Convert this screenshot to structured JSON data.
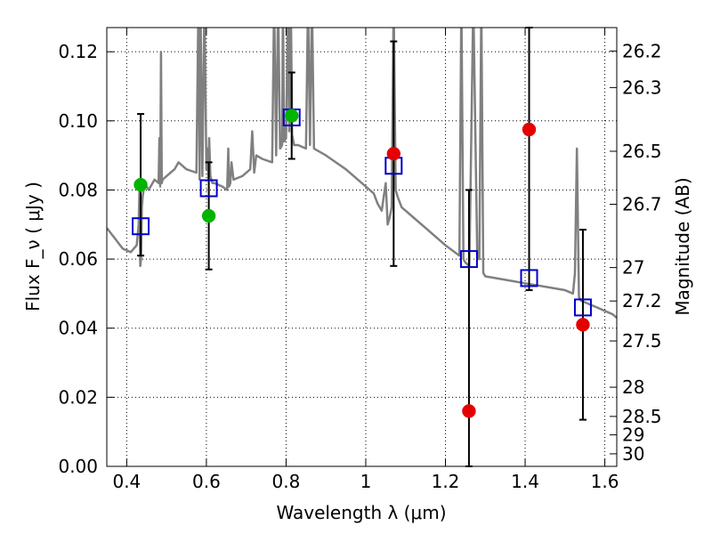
{
  "chart_data": {
    "type": "scatter",
    "xlabel": "Wavelength  λ (μm)",
    "ylabel": "Flux  F_ν  ( μJy )",
    "ylabel_right": "Magnitude (AB)",
    "xlim": [
      0.35,
      1.63
    ],
    "ylim": [
      0.0,
      0.127
    ],
    "x_ticks": [
      0.4,
      0.6,
      0.8,
      1.0,
      1.2,
      1.4,
      1.6
    ],
    "x_tick_labels": [
      "0.4",
      "0.6",
      "0.8",
      "1",
      "1.2",
      "1.4",
      "1.6"
    ],
    "y_ticks": [
      0.0,
      0.02,
      0.04,
      0.06,
      0.08,
      0.1,
      0.12
    ],
    "y_tick_labels": [
      "0.00",
      "0.02",
      "0.04",
      "0.06",
      "0.08",
      "0.10",
      "0.12"
    ],
    "right_ticks": [
      26.2,
      26.3,
      26.5,
      26.7,
      27,
      27.2,
      27.5,
      28,
      28.5,
      29,
      30
    ],
    "right_tick_labels": [
      "26.2",
      "26.3",
      "26.5",
      "26.7",
      "27",
      "27.2",
      "27.5",
      "28",
      "28.5",
      "29",
      "30"
    ],
    "grid": true,
    "colors": {
      "model": "#808080",
      "green": "#00b400",
      "red": "#e60000",
      "box": "#0000cc",
      "errorbar": "#000000"
    },
    "series": [
      {
        "marker": "open-square",
        "color": "#0000cc",
        "points": [
          {
            "x": 0.435,
            "y": 0.0695
          },
          {
            "x": 0.606,
            "y": 0.0805
          },
          {
            "x": 0.814,
            "y": 0.101
          },
          {
            "x": 1.07,
            "y": 0.087
          },
          {
            "x": 1.259,
            "y": 0.06
          },
          {
            "x": 1.41,
            "y": 0.0545
          },
          {
            "x": 1.545,
            "y": 0.046
          }
        ]
      },
      {
        "marker": "filled-circle",
        "color": "#00b400",
        "points": [
          {
            "x": 0.435,
            "y": 0.0815
          },
          {
            "x": 0.606,
            "y": 0.0725
          },
          {
            "x": 0.814,
            "y": 0.1015
          }
        ]
      },
      {
        "marker": "filled-circle",
        "color": "#e60000",
        "points": [
          {
            "x": 1.07,
            "y": 0.0905
          },
          {
            "x": 1.259,
            "y": 0.016
          },
          {
            "x": 1.41,
            "y": 0.0975
          },
          {
            "x": 1.545,
            "y": 0.041
          }
        ]
      }
    ],
    "errorbars": [
      {
        "x": 0.435,
        "low": 0.061,
        "high": 0.102
      },
      {
        "x": 0.606,
        "low": 0.057,
        "high": 0.088
      },
      {
        "x": 0.814,
        "low": 0.089,
        "high": 0.114
      },
      {
        "x": 1.07,
        "low": 0.058,
        "high": 0.123
      },
      {
        "x": 1.259,
        "low": 0.0,
        "high": 0.08
      },
      {
        "x": 1.41,
        "low": 0.051,
        "high": 0.127
      },
      {
        "x": 1.545,
        "low": 0.0135,
        "high": 0.0685
      }
    ],
    "model_spectrum": {
      "x": [
        0.35,
        0.37,
        0.39,
        0.41,
        0.425,
        0.43,
        0.432,
        0.434,
        0.436,
        0.438,
        0.44,
        0.445,
        0.455,
        0.47,
        0.48,
        0.482,
        0.484,
        0.486,
        0.488,
        0.49,
        0.5,
        0.51,
        0.52,
        0.53,
        0.55,
        0.575,
        0.58,
        0.583,
        0.585,
        0.59,
        0.595,
        0.6,
        0.603,
        0.605,
        0.607,
        0.61,
        0.615,
        0.62,
        0.64,
        0.652,
        0.655,
        0.657,
        0.66,
        0.663,
        0.668,
        0.69,
        0.71,
        0.715,
        0.72,
        0.725,
        0.74,
        0.765,
        0.77,
        0.775,
        0.78,
        0.785,
        0.79,
        0.792,
        0.795,
        0.8,
        0.805,
        0.808,
        0.812,
        0.815,
        0.82,
        0.83,
        0.85,
        0.855,
        0.86,
        0.865,
        0.87,
        0.9,
        0.95,
        1.0,
        1.02,
        1.03,
        1.04,
        1.05,
        1.055,
        1.06,
        1.065,
        1.07,
        1.075,
        1.08,
        1.09,
        1.1,
        1.12,
        1.15,
        1.2,
        1.235,
        1.24,
        1.245,
        1.25,
        1.26,
        1.27,
        1.28,
        1.285,
        1.29,
        1.295,
        1.3,
        1.35,
        1.4,
        1.45,
        1.5,
        1.52,
        1.525,
        1.53,
        1.535,
        1.54,
        1.56,
        1.58,
        1.6,
        1.62,
        1.63
      ],
      "y": [
        0.069,
        0.066,
        0.063,
        0.062,
        0.064,
        0.07,
        0.08,
        0.058,
        0.06,
        0.075,
        0.078,
        0.082,
        0.08,
        0.083,
        0.082,
        0.095,
        0.081,
        0.12,
        0.082,
        0.083,
        0.084,
        0.085,
        0.086,
        0.088,
        0.086,
        0.085,
        0.135,
        0.083,
        0.135,
        0.084,
        0.135,
        0.086,
        0.092,
        0.083,
        0.095,
        0.084,
        0.082,
        0.082,
        0.081,
        0.08,
        0.092,
        0.081,
        0.082,
        0.088,
        0.083,
        0.084,
        0.086,
        0.097,
        0.085,
        0.09,
        0.089,
        0.088,
        0.135,
        0.09,
        0.135,
        0.092,
        0.093,
        0.135,
        0.094,
        0.095,
        0.135,
        0.097,
        0.135,
        0.096,
        0.093,
        0.093,
        0.092,
        0.135,
        0.093,
        0.135,
        0.092,
        0.09,
        0.086,
        0.081,
        0.079,
        0.076,
        0.074,
        0.082,
        0.07,
        0.072,
        0.075,
        0.135,
        0.08,
        0.078,
        0.075,
        0.074,
        0.072,
        0.069,
        0.064,
        0.061,
        0.135,
        0.06,
        0.059,
        0.058,
        0.135,
        0.06,
        0.06,
        0.135,
        0.056,
        0.055,
        0.054,
        0.053,
        0.052,
        0.051,
        0.05,
        0.056,
        0.092,
        0.049,
        0.048,
        0.047,
        0.046,
        0.045,
        0.044,
        0.043
      ]
    }
  }
}
